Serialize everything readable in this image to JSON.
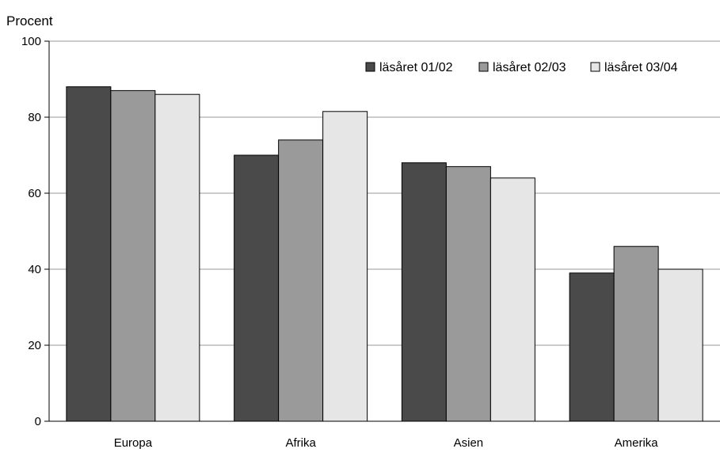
{
  "chart_data": {
    "type": "bar",
    "ylabel": "Procent",
    "xlabel": "",
    "ylim": [
      0,
      100
    ],
    "yticks": [
      0,
      20,
      40,
      60,
      80,
      100
    ],
    "grid": true,
    "legend_position": "top-right",
    "categories": [
      "Europa",
      "Afrika",
      "Asien",
      "Amerika"
    ],
    "series": [
      {
        "name": "läsåret 01/02",
        "color": "#4a4a4a",
        "values": [
          88,
          70,
          68,
          39
        ]
      },
      {
        "name": "läsåret 02/03",
        "color": "#9a9a9a",
        "values": [
          87,
          74,
          67,
          46
        ]
      },
      {
        "name": "läsåret 03/04",
        "color": "#e6e6e6",
        "values": [
          86,
          81.5,
          64,
          40
        ]
      }
    ]
  }
}
